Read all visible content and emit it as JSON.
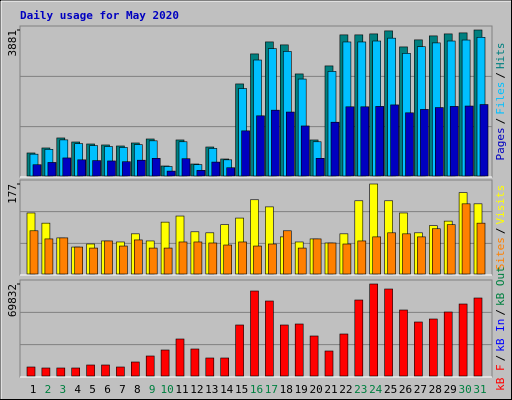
{
  "title": "Daily usage for May 2020",
  "chart_data": [
    {
      "type": "bar",
      "legend_separator": "/",
      "ylim": [
        0,
        3881
      ],
      "yticks": [
        3881
      ],
      "series": [
        {
          "name": "Pages",
          "color": "#0000c0",
          "values": [
            300,
            360,
            480,
            430,
            410,
            400,
            380,
            420,
            470,
            130,
            460,
            150,
            370,
            220,
            1200,
            1600,
            1750,
            1700,
            1330,
            470,
            1430,
            1840,
            1840,
            1850,
            1890,
            1680,
            1770,
            1820,
            1850,
            1860,
            1900
          ]
        },
        {
          "name": "Files",
          "color": "#00c0ff",
          "values": [
            580,
            708,
            960,
            860,
            808,
            783,
            758,
            834,
            935,
            253,
            910,
            303,
            733,
            430,
            2325,
            3083,
            3386,
            3311,
            2577,
            910,
            2780,
            3563,
            3563,
            3588,
            3664,
            3259,
            3437,
            3538,
            3588,
            3614,
            3687
          ]
        },
        {
          "name": "Hits",
          "color": "#008080",
          "values": [
            612,
            745,
            1011,
            904,
            851,
            825,
            798,
            878,
            984,
            266,
            958,
            319,
            771,
            452,
            2447,
            3245,
            3564,
            3485,
            2713,
            958,
            2926,
            3751,
            3751,
            3777,
            3857,
            3431,
            3618,
            3724,
            3777,
            3804,
            3881
          ]
        }
      ]
    },
    {
      "type": "bar",
      "legend_separator": "/",
      "ylim": [
        0,
        177
      ],
      "yticks": [
        177
      ],
      "series": [
        {
          "name": "Sites",
          "color": "#ff8000",
          "values": [
            85,
            69,
            71,
            53,
            51,
            65,
            55,
            67,
            51,
            51,
            63,
            63,
            61,
            57,
            63,
            55,
            59,
            85,
            51,
            69,
            61,
            59,
            65,
            73,
            81,
            79,
            73,
            89,
            97,
            138,
            100
          ]
        },
        {
          "name": "Visits",
          "color": "#ffff00",
          "values": [
            120,
            100,
            71,
            53,
            59,
            65,
            63,
            79,
            65,
            102,
            114,
            83,
            81,
            97,
            110,
            146,
            132,
            73,
            63,
            69,
            61,
            79,
            144,
            177,
            144,
            120,
            81,
            95,
            104,
            160,
            138
          ]
        }
      ]
    },
    {
      "type": "bar",
      "legend_separator": "/",
      "ylim": [
        0,
        69832
      ],
      "yticks": [
        69832
      ],
      "categories": [
        "1",
        "2",
        "3",
        "4",
        "5",
        "6",
        "7",
        "8",
        "9",
        "10",
        "11",
        "12",
        "13",
        "14",
        "15",
        "16",
        "17",
        "18",
        "19",
        "20",
        "21",
        "22",
        "23",
        "24",
        "25",
        "26",
        "27",
        "28",
        "29",
        "30",
        "31"
      ],
      "category_colors": [
        "#000000",
        "#008040",
        "#008040",
        "#000000",
        "#000000",
        "#000000",
        "#000000",
        "#000000",
        "#008040",
        "#008040",
        "#000000",
        "#000000",
        "#000000",
        "#000000",
        "#000000",
        "#008040",
        "#008040",
        "#000000",
        "#000000",
        "#000000",
        "#000000",
        "#000000",
        "#008040",
        "#008040",
        "#000000",
        "#000000",
        "#000000",
        "#000000",
        "#000000",
        "#008040",
        "#008040"
      ],
      "series": [
        {
          "name": "kB F",
          "color": "#ff0000",
          "values": [
            6831,
            6072,
            6072,
            6072,
            8349,
            8349,
            6831,
            10626,
            15180,
            19734,
            28083,
            20493,
            13662,
            13662,
            38709,
            64515,
            56925,
            38709,
            39468,
            30360,
            18975,
            31878,
            57684,
            69832,
            66033,
            50094,
            40986,
            43263,
            48576,
            54648,
            59202
          ]
        }
      ],
      "legend_extra": [
        {
          "name": "kB In",
          "color": "#0000ff"
        },
        {
          "name": "kB Out",
          "color": "#008040"
        }
      ]
    }
  ]
}
